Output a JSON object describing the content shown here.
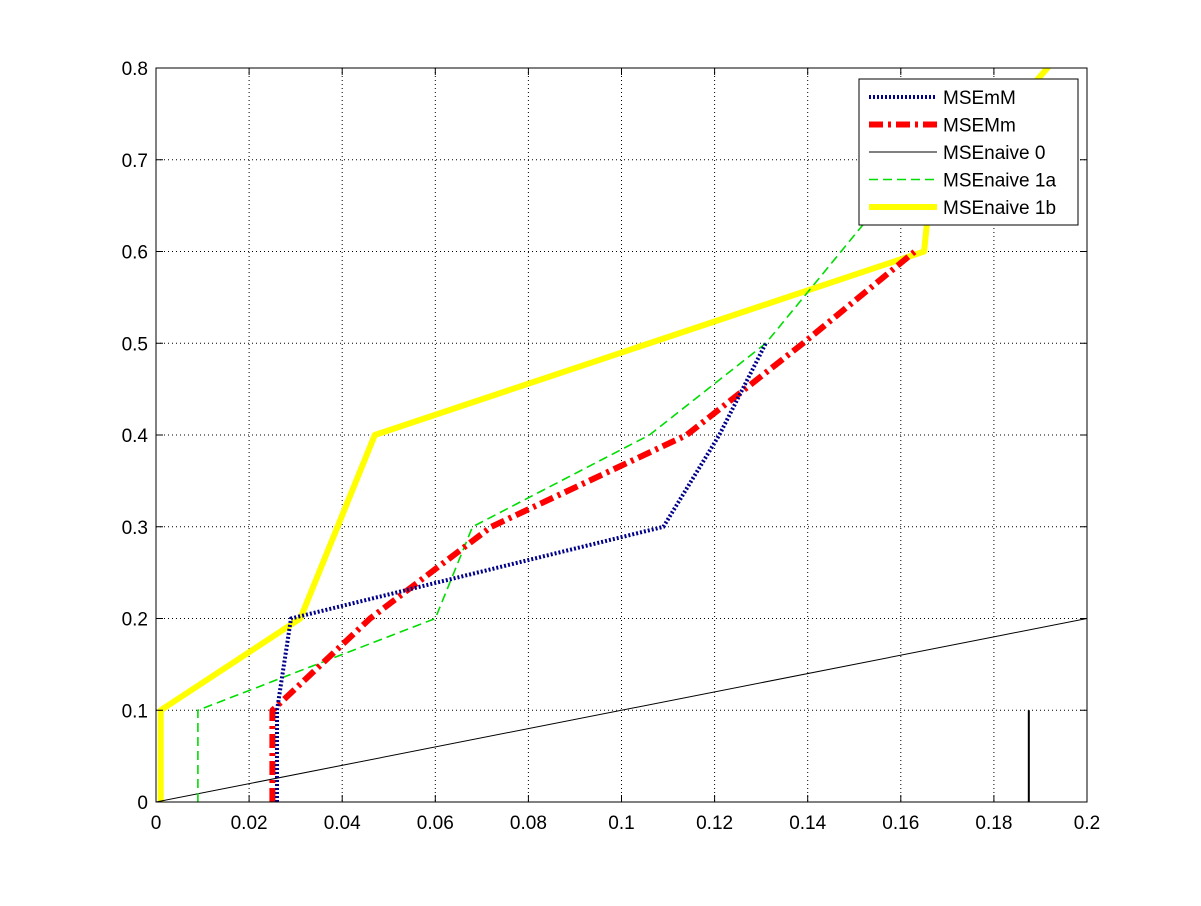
{
  "chart_data": {
    "type": "line",
    "title": "",
    "xlabel": "",
    "ylabel": "",
    "xlim": [
      0,
      0.2
    ],
    "ylim": [
      0,
      0.8
    ],
    "grid": true,
    "legend_position": "top-right",
    "x_ticks": [
      "0",
      "0.02",
      "0.04",
      "0.06",
      "0.08",
      "0.1",
      "0.12",
      "0.14",
      "0.16",
      "0.18",
      "0.2"
    ],
    "y_ticks": [
      "0",
      "0.1",
      "0.2",
      "0.3",
      "0.4",
      "0.5",
      "0.6",
      "0.7",
      "0.8"
    ],
    "series": [
      {
        "name": "MSEmM",
        "color": "#00008B",
        "style": "dotted",
        "points": [
          [
            0.026,
            0
          ],
          [
            0.026,
            0.1
          ],
          [
            0.029,
            0.2
          ],
          [
            0.109,
            0.3
          ],
          [
            0.121,
            0.4
          ],
          [
            0.131,
            0.5
          ]
        ]
      },
      {
        "name": "MSEMm",
        "color": "#FF0000",
        "style": "dashdot",
        "points": [
          [
            0.025,
            0
          ],
          [
            0.025,
            0.1
          ],
          [
            0.046,
            0.2
          ],
          [
            0.072,
            0.3
          ],
          [
            0.114,
            0.4
          ],
          [
            0.139,
            0.5
          ],
          [
            0.163,
            0.6
          ]
        ]
      },
      {
        "name": "MSEnaive 0",
        "color": "#000000",
        "style": "solid",
        "points": [
          [
            0,
            0
          ],
          [
            0.2,
            0.2
          ]
        ]
      },
      {
        "name": "MSEnaive 1a",
        "color": "#00DD00",
        "style": "dashed",
        "points": [
          [
            0.009,
            0
          ],
          [
            0.009,
            0.1
          ],
          [
            0.06,
            0.2
          ],
          [
            0.068,
            0.3
          ],
          [
            0.106,
            0.4
          ],
          [
            0.131,
            0.5
          ],
          [
            0.152,
            0.63
          ]
        ]
      },
      {
        "name": "MSEnaive 1b",
        "color": "#FFFF00",
        "style": "solid",
        "points": [
          [
            0.001,
            0
          ],
          [
            0.001,
            0.1
          ],
          [
            0.031,
            0.2
          ],
          [
            0.047,
            0.4
          ],
          [
            0.165,
            0.6
          ],
          [
            0.166,
            0.65
          ],
          [
            0.2,
            0.85
          ]
        ]
      }
    ],
    "annotations": [
      {
        "type": "vertical-segment",
        "color": "#000000",
        "x": 0.1875,
        "y_from": 0,
        "y_to": 0.1
      }
    ]
  }
}
